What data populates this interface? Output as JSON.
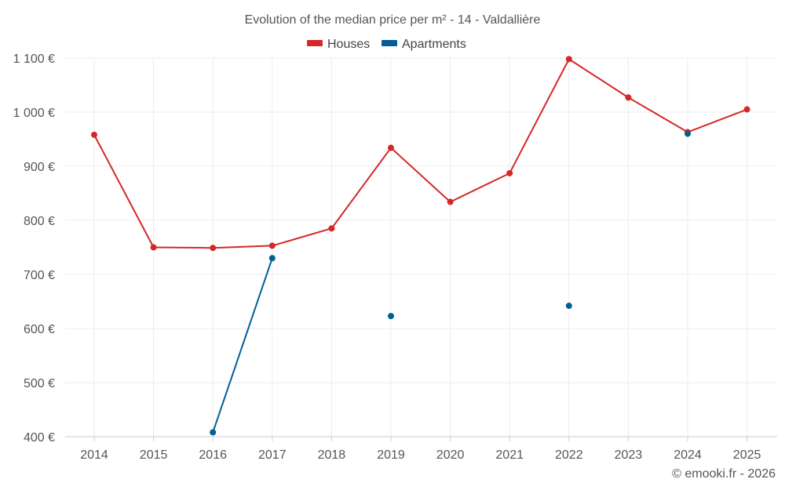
{
  "chart_data": {
    "type": "line",
    "title": "Evolution of the median price per m² - 14 - Valdallière",
    "xlabel": "",
    "ylabel": "",
    "categories": [
      "2014",
      "2015",
      "2016",
      "2017",
      "2018",
      "2019",
      "2020",
      "2021",
      "2022",
      "2023",
      "2024",
      "2025"
    ],
    "ylim": [
      400,
      1100
    ],
    "yticks": [
      400,
      500,
      600,
      700,
      800,
      900,
      1000,
      1100
    ],
    "ytick_labels": [
      "400 €",
      "500 €",
      "600 €",
      "700 €",
      "800 €",
      "900 €",
      "1 000 €",
      "1 100 €"
    ],
    "grid": true,
    "legend_position": "top-center",
    "series": [
      {
        "name": "Houses",
        "color": "#d62728",
        "values": [
          958,
          750,
          749,
          753,
          785,
          934,
          834,
          887,
          1098,
          1027,
          963,
          1005
        ]
      },
      {
        "name": "Apartments",
        "color": "#005f94",
        "values": [
          null,
          null,
          408,
          730,
          null,
          623,
          null,
          null,
          642,
          null,
          960,
          null
        ]
      }
    ]
  },
  "credit": "© emooki.fr - 2026"
}
